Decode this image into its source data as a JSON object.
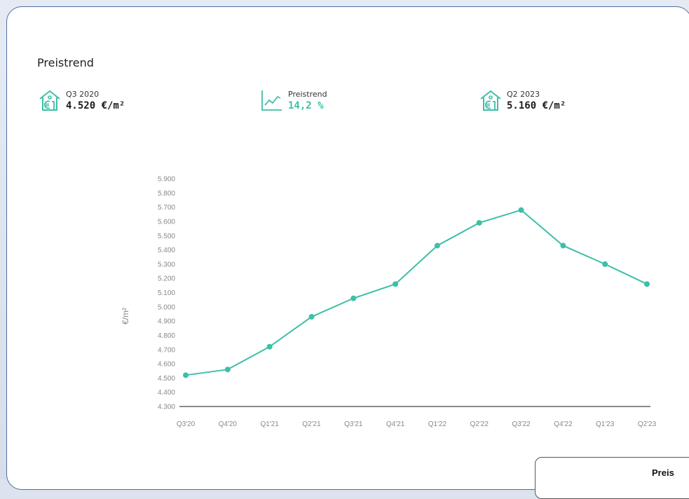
{
  "section": {
    "title": "Preistrend"
  },
  "kpis": [
    {
      "label": "Q3 2020",
      "value": "4.520 €/m²",
      "icon": "house-euro-icon"
    },
    {
      "label": "Preistrend",
      "value": "14,2 %",
      "icon": "trend-chart-icon"
    },
    {
      "label": "Q2 2023",
      "value": "5.160 €/m²",
      "icon": "house-euro-icon"
    }
  ],
  "colors": {
    "accent": "#3dbfa8",
    "card_border": "#4f6da0",
    "axis_text": "#888888"
  },
  "chart_data": {
    "type": "line",
    "title": "",
    "xlabel": "",
    "ylabel": "€/m²",
    "categories": [
      "Q3'20",
      "Q4'20",
      "Q1'21",
      "Q2'21",
      "Q3'21",
      "Q4'21",
      "Q1'22",
      "Q2'22",
      "Q3'22",
      "Q4'22",
      "Q1'23",
      "Q2'23"
    ],
    "series": [
      {
        "values": [
          4520,
          4560,
          4720,
          4930,
          5060,
          5160,
          5430,
          5590,
          5680,
          5430,
          5300,
          5160
        ]
      }
    ],
    "ylim": [
      4300,
      5900
    ],
    "yticks": [
      "4.300",
      "4.400",
      "4.500",
      "4.600",
      "4.700",
      "4.800",
      "4.900",
      "5.000",
      "5.100",
      "5.200",
      "5.300",
      "5.400",
      "5.500",
      "5.600",
      "5.700",
      "5.800",
      "5.900"
    ],
    "grid": false,
    "legend": "none"
  },
  "overlay": {
    "title": "Preis"
  }
}
